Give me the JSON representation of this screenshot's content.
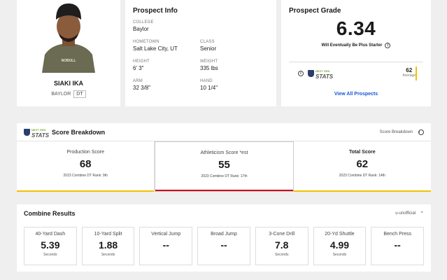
{
  "player": {
    "name": "SIAKI IKA",
    "school": "BAYLOR",
    "position": "DT"
  },
  "prospect_info": {
    "title": "Prospect Info",
    "fields": [
      {
        "label": "COLLEGE",
        "value": "Baylor"
      },
      {
        "label": "",
        "value": ""
      },
      {
        "label": "HOMETOWN",
        "value": "Salt Lake City, UT"
      },
      {
        "label": "CLASS",
        "value": "Senior"
      },
      {
        "label": "HEIGHT",
        "value": "6' 3\""
      },
      {
        "label": "WEIGHT",
        "value": "335 lbs"
      },
      {
        "label": "ARM",
        "value": "32 3/8\""
      },
      {
        "label": "HAND",
        "value": "10 1/4\""
      }
    ]
  },
  "grade": {
    "title": "Prospect Grade",
    "value": "6.34",
    "description": "Will Eventually Be Plus Starter",
    "average_value": "62",
    "average_label": "Average",
    "link": "View All Prospects"
  },
  "nextgen": {
    "line1": "NEXT GEN",
    "line2": "STATS"
  },
  "breakdown": {
    "title": "Score Breakdown",
    "right_label": "Score Breakdown",
    "scores": [
      {
        "label": "Production Score",
        "value": "68",
        "rank": "2023 Combine DT Rank: 9th",
        "color": "#f2c200"
      },
      {
        "label": "Athleticism Score *est",
        "value": "55",
        "rank": "2023 Combine DT Rank: 17th",
        "color": "#d0021b"
      },
      {
        "label": "Total Score",
        "value": "62",
        "rank": "2023 Combine DT Rank: 14th",
        "color": "#f2c200"
      }
    ]
  },
  "combine": {
    "title": "Combine Results",
    "right_label": "u-unofficial",
    "drills": [
      {
        "label": "40-Yard Dash",
        "value": "5.39",
        "unit": "Seconds"
      },
      {
        "label": "10-Yard Split",
        "value": "1.88",
        "unit": "Seconds"
      },
      {
        "label": "Vertical Jump",
        "value": "--",
        "unit": ""
      },
      {
        "label": "Broad Jump",
        "value": "--",
        "unit": ""
      },
      {
        "label": "3-Cone Drill",
        "value": "7.8",
        "unit": "Seconds"
      },
      {
        "label": "20-Yd Shuttle",
        "value": "4.99",
        "unit": "Seconds"
      },
      {
        "label": "Bench Press",
        "value": "--",
        "unit": ""
      }
    ]
  }
}
